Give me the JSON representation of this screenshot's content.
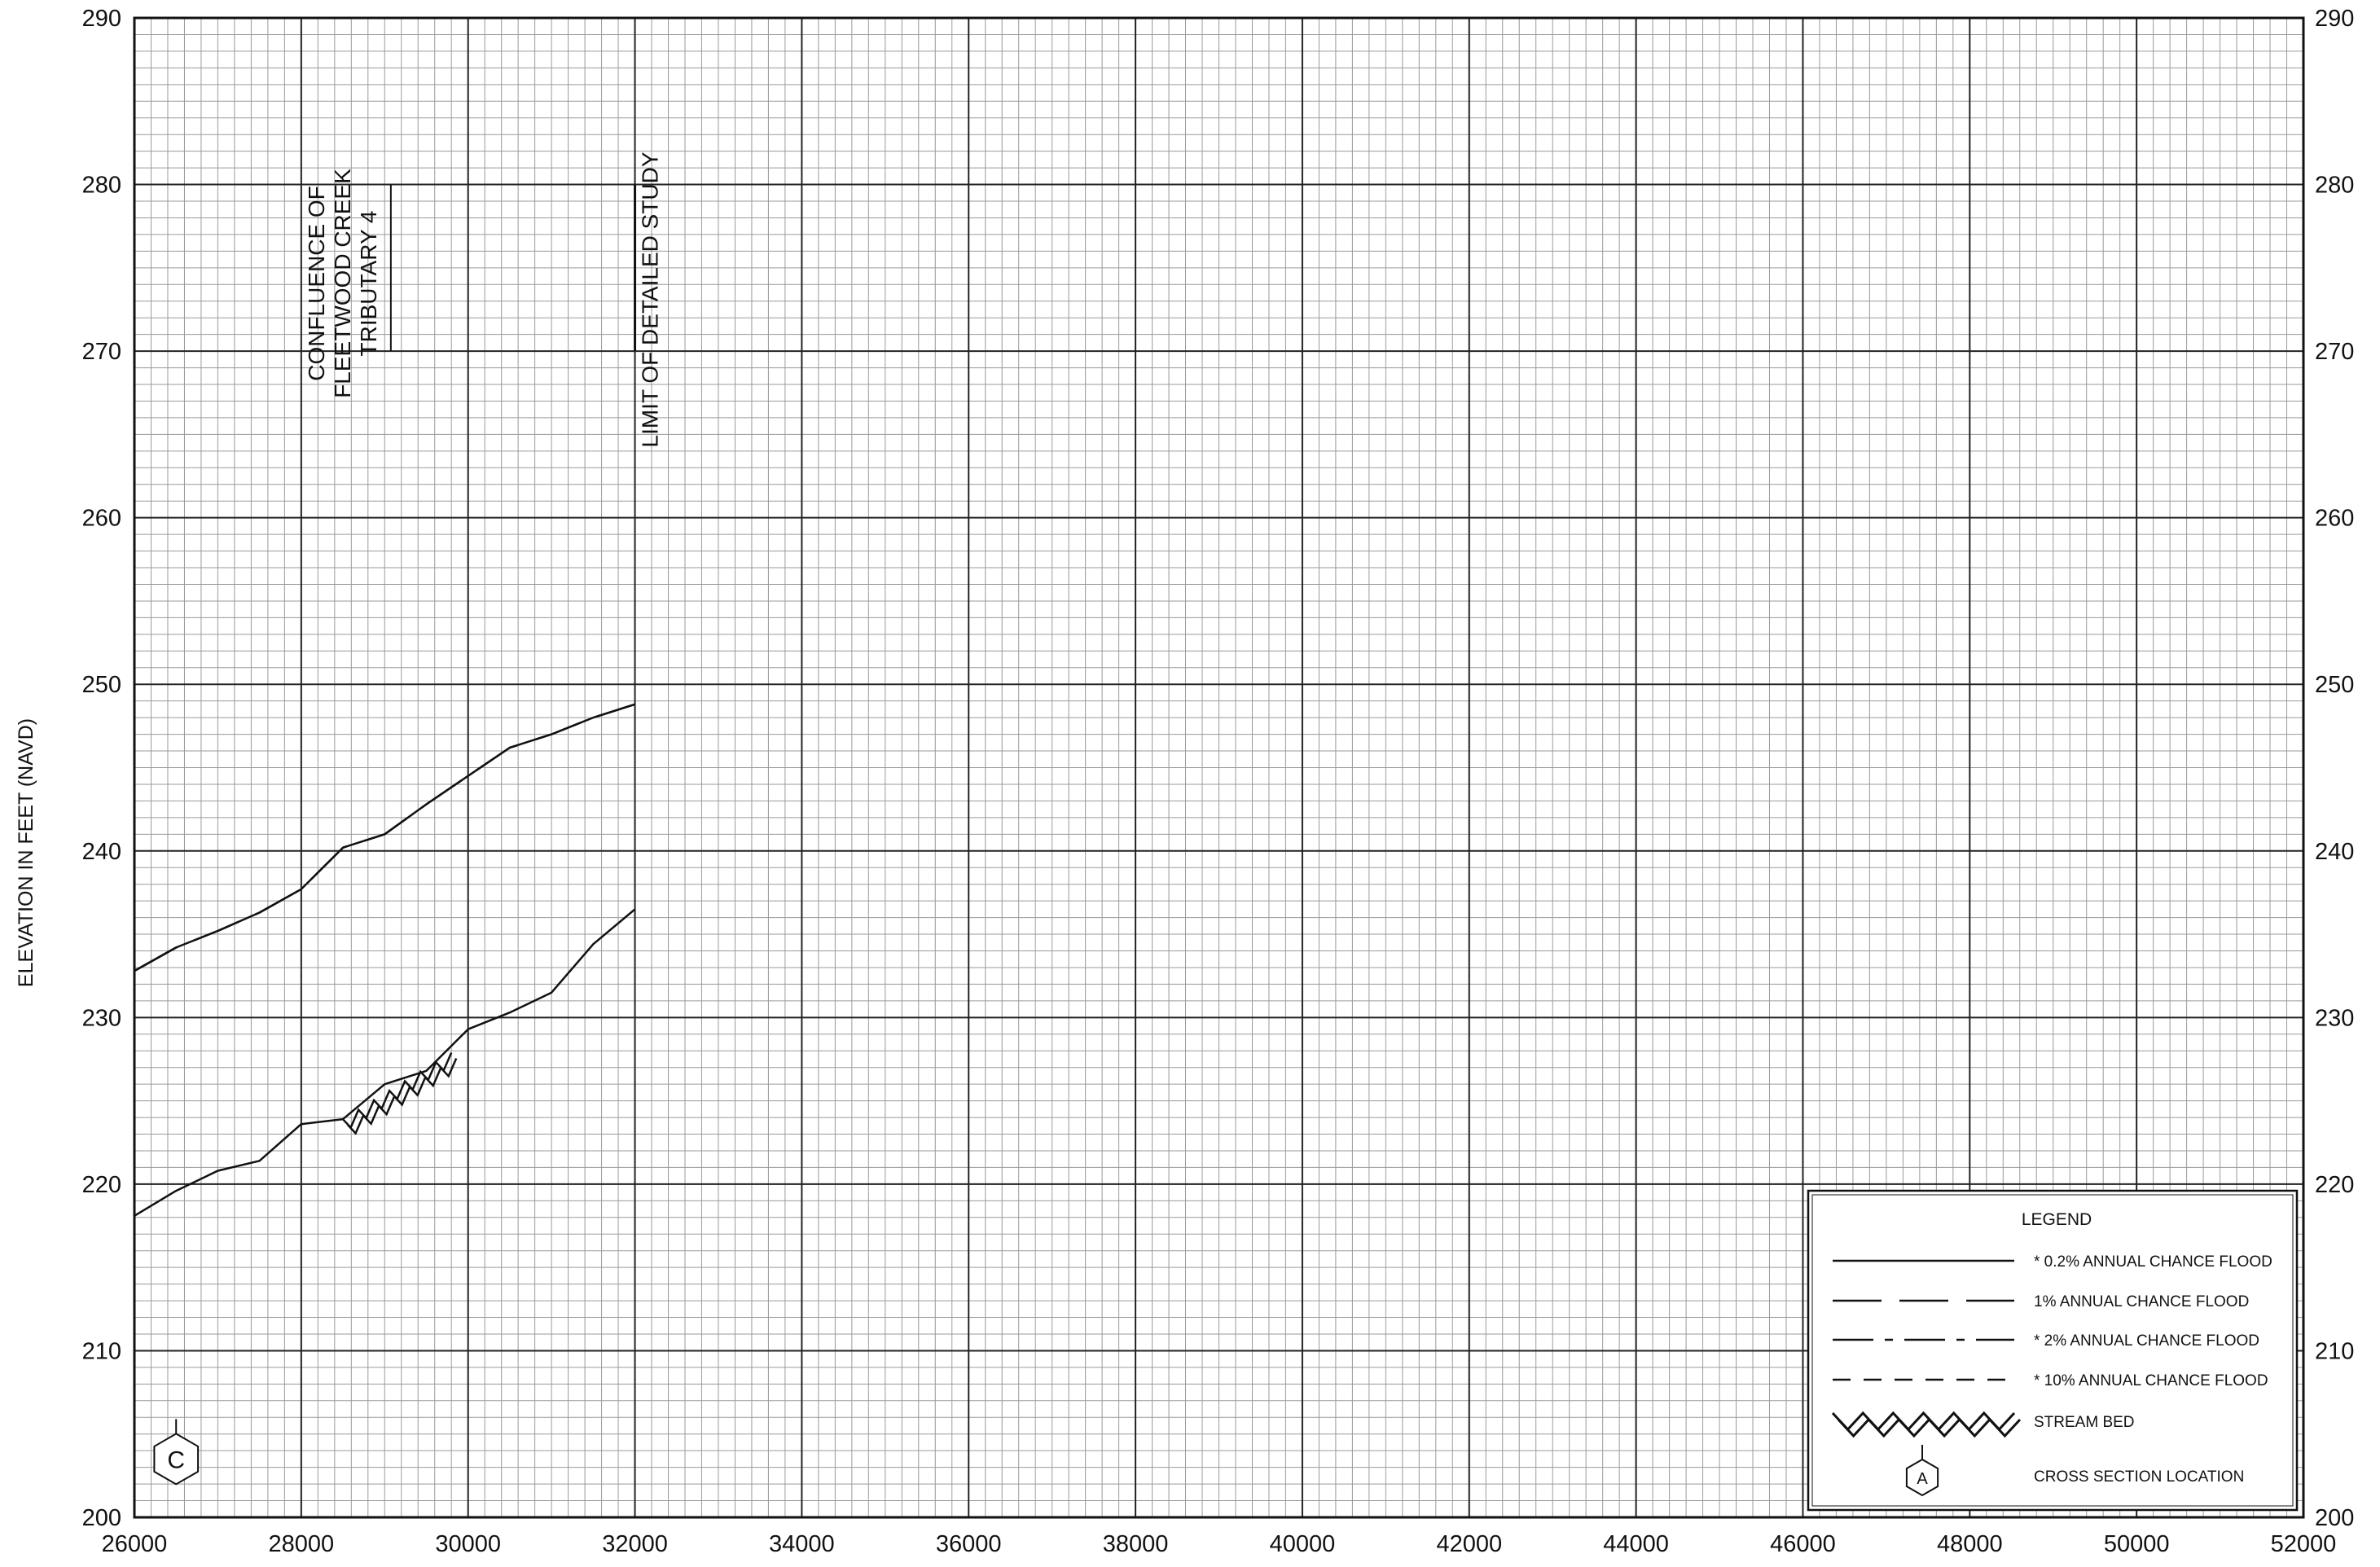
{
  "chart_data": {
    "type": "line",
    "title": "",
    "xlabel": "",
    "ylabel": "ELEVATION IN FEET (NAVD)",
    "xlim": [
      26000,
      52000
    ],
    "ylim": [
      200,
      290
    ],
    "x_ticks": [
      26000,
      28000,
      30000,
      32000,
      34000,
      36000,
      38000,
      40000,
      42000,
      44000,
      46000,
      48000,
      50000,
      52000
    ],
    "y_ticks": [
      200,
      210,
      220,
      230,
      240,
      250,
      260,
      270,
      280,
      290
    ],
    "grid": true,
    "legend_position": "bottom-right",
    "series": [
      {
        "name": "* 0.2% ANNUAL CHANCE FLOOD",
        "style": "solid",
        "x": [
          26000,
          26500,
          27000,
          27500,
          28000,
          28500,
          29000,
          29500,
          30000,
          30500,
          31000,
          31500,
          32000
        ],
        "y": [
          232.8,
          234.2,
          235.2,
          236.3,
          237.7,
          240.2,
          241.0,
          242.8,
          244.5,
          246.2,
          247.0,
          248.0,
          248.8
        ]
      },
      {
        "name": "1% ANNUAL CHANCE FLOOD",
        "style": "long-dash",
        "x": [
          26000,
          26500,
          27000,
          27500,
          28000,
          28500,
          29000,
          29500,
          30000,
          30500,
          31000,
          31500,
          32000
        ],
        "y": [
          232.8,
          234.2,
          235.2,
          236.3,
          237.7,
          240.2,
          241.0,
          242.8,
          244.5,
          246.2,
          247.0,
          248.0,
          248.8
        ]
      },
      {
        "name": "STREAM BED",
        "style": "solid",
        "x": [
          26000,
          26500,
          27000,
          27500,
          28000,
          28500,
          29000,
          29500,
          30000,
          30500,
          31000,
          31500,
          32000
        ],
        "y": [
          218.1,
          219.6,
          220.8,
          221.4,
          223.6,
          223.9,
          226.0,
          226.8,
          229.3,
          230.3,
          231.5,
          234.4,
          236.5
        ]
      }
    ],
    "stream_bed_hatch": {
      "x_start": 28500,
      "x_end": 29800,
      "y_start": 223.5,
      "y_end": 227.5
    },
    "annotations": [
      {
        "lines": [
          "CONFLUENCE OF",
          "FLEETWOOD CREEK",
          "TRIBUTARY 4"
        ],
        "x": 28000
      },
      {
        "lines": [
          "LIMIT OF DETAILED STUDY"
        ],
        "x": 32000
      }
    ],
    "cross_sections": [
      {
        "label": "C",
        "x": 26500,
        "y": 203.5
      }
    ],
    "legend": {
      "title": "LEGEND",
      "items": [
        {
          "label": "* 0.2% ANNUAL CHANCE FLOOD",
          "style": "solid"
        },
        {
          "label": "1% ANNUAL CHANCE FLOOD",
          "style": "long-dash"
        },
        {
          "label": "* 2% ANNUAL CHANCE FLOOD",
          "style": "dash-dot"
        },
        {
          "label": "* 10% ANNUAL CHANCE FLOOD",
          "style": "short-dash"
        },
        {
          "label": "STREAM BED",
          "style": "hatch"
        },
        {
          "label": "CROSS SECTION LOCATION",
          "style": "hexagon",
          "symbol": "A"
        }
      ]
    }
  }
}
